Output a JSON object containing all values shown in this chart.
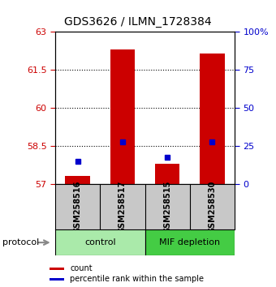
{
  "title": "GDS3626 / ILMN_1728384",
  "samples": [
    "GSM258516",
    "GSM258517",
    "GSM258515",
    "GSM258530"
  ],
  "bar_bottoms": [
    57,
    57,
    57,
    57
  ],
  "bar_tops": [
    57.32,
    62.28,
    57.78,
    62.15
  ],
  "percentile_values": [
    57.88,
    58.65,
    58.05,
    58.65
  ],
  "ylim_left": [
    57,
    63
  ],
  "ylim_right": [
    0,
    100
  ],
  "yticks_left": [
    57,
    58.5,
    60,
    61.5,
    63
  ],
  "ytick_labels_left": [
    "57",
    "58.5",
    "60",
    "61.5",
    "63"
  ],
  "yticks_right": [
    0,
    25,
    50,
    75,
    100
  ],
  "ytick_labels_right": [
    "0",
    "25",
    "50",
    "75",
    "100%"
  ],
  "bar_color": "#cc0000",
  "percentile_color": "#0000cc",
  "bar_width": 0.55,
  "group_control_color": "#aaeaaa",
  "group_mif_color": "#44cc44",
  "group_labels": [
    "control",
    "MIF depletion"
  ],
  "protocol_label": "protocol",
  "legend_count_label": "count",
  "legend_percentile_label": "percentile rank within the sample",
  "bg_color": "#ffffff",
  "sample_area_color": "#c8c8c8",
  "grid_dotted_ticks": [
    58.5,
    60,
    61.5
  ],
  "title_fontsize": 10,
  "tick_fontsize": 8,
  "label_fontsize": 7,
  "group_fontsize": 8,
  "legend_fontsize": 7
}
